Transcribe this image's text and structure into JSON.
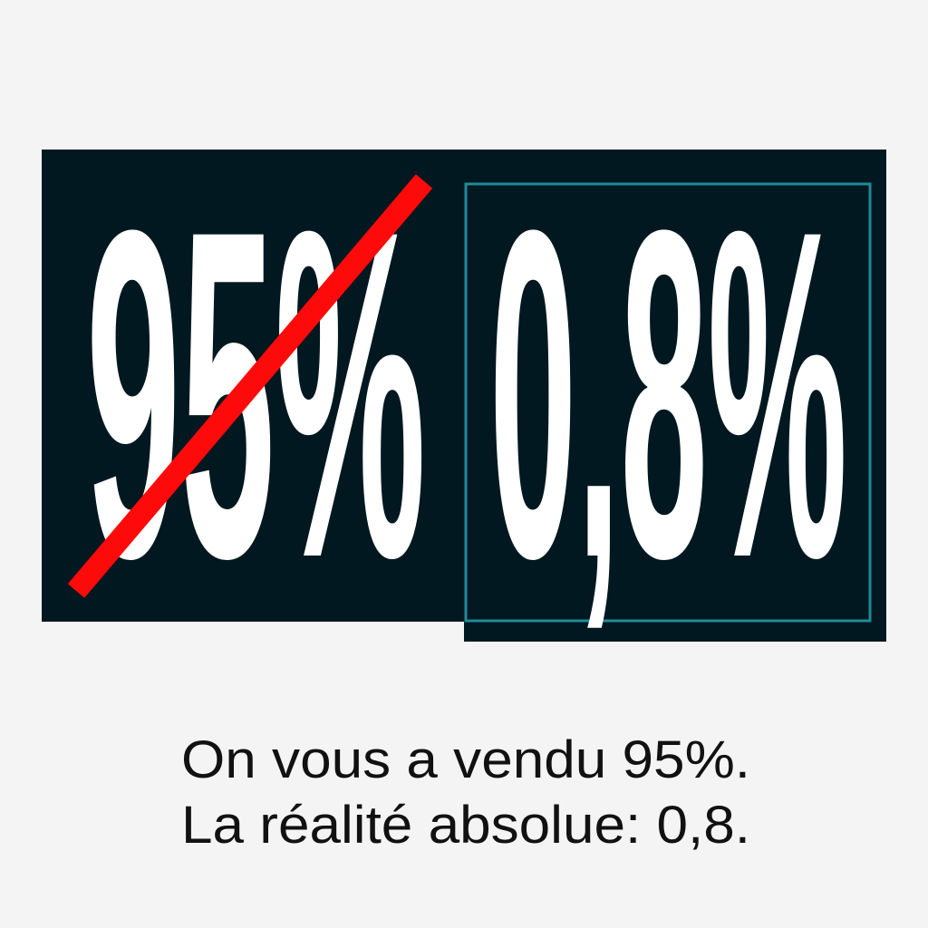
{
  "graphic": {
    "crossed_value": "95%",
    "real_value": "0,8%",
    "caption_line1": "On vous a vendu 95%.",
    "caption_line2": "La réalité absolue: 0,8."
  },
  "colors": {
    "background": "#f4f4f4",
    "panel": "#021820",
    "accent_frame": "#1f8a99",
    "strike": "#ff0a0a",
    "numbers": "#ffffff",
    "caption": "#111111"
  },
  "icons": {
    "strike": "red-diagonal-strikethrough"
  }
}
